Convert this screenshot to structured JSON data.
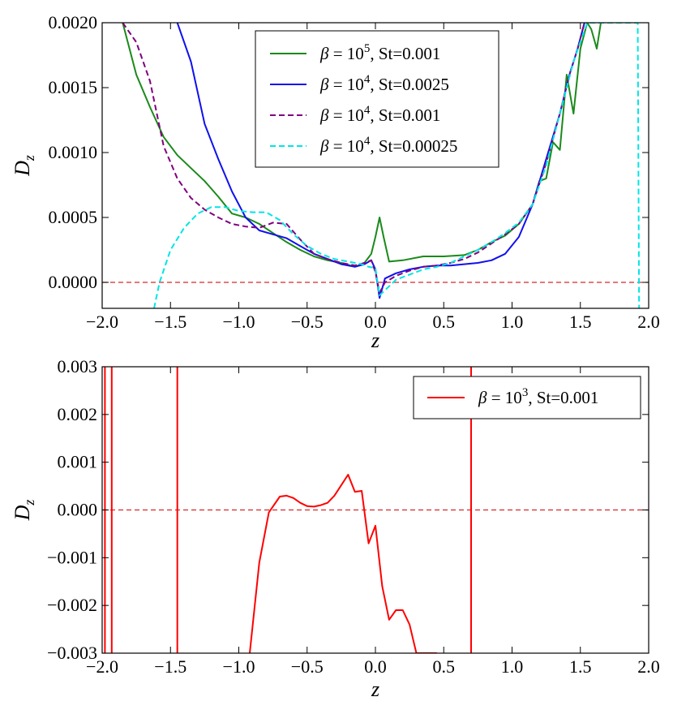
{
  "chart_data": [
    {
      "type": "line",
      "xlabel": "z",
      "ylabel": "D_z",
      "xlim": [
        -2.0,
        2.0
      ],
      "ylim": [
        -0.0002,
        0.002
      ],
      "xticks": [
        -2.0,
        -1.5,
        -1.0,
        -0.5,
        0.0,
        0.5,
        1.0,
        1.5,
        2.0
      ],
      "xtick_labels": [
        "−2.0",
        "−1.5",
        "−1.0",
        "−0.5",
        "0.0",
        "0.5",
        "1.0",
        "1.5",
        "2.0"
      ],
      "yticks": [
        0.0,
        0.0005,
        0.001,
        0.0015,
        0.002
      ],
      "ytick_labels": [
        "0.0000",
        "0.0005",
        "0.0010",
        "0.0015",
        "0.0020"
      ],
      "reference_line": {
        "y": 0.0,
        "color": "#d62728",
        "style": "dashed"
      },
      "legend_position": "top-center",
      "series": [
        {
          "name": "β = 10⁵, St=0.001",
          "color": "#1a8a1a",
          "style": "solid",
          "x": [
            -1.85,
            -1.75,
            -1.65,
            -1.55,
            -1.45,
            -1.35,
            -1.25,
            -1.15,
            -1.05,
            -0.95,
            -0.85,
            -0.75,
            -0.65,
            -0.55,
            -0.45,
            -0.35,
            -0.25,
            -0.15,
            -0.08,
            -0.03,
            0.0,
            0.03,
            0.06,
            0.1,
            0.2,
            0.35,
            0.5,
            0.65,
            0.75,
            0.85,
            0.95,
            1.05,
            1.15,
            1.2,
            1.25,
            1.3,
            1.35,
            1.4,
            1.45,
            1.5,
            1.55,
            1.58,
            1.62,
            1.65
          ],
          "y": [
            0.002,
            0.0016,
            0.00135,
            0.00112,
            0.00098,
            0.00088,
            0.00078,
            0.00066,
            0.00053,
            0.0005,
            0.00045,
            0.00038,
            0.00031,
            0.00025,
            0.0002,
            0.00017,
            0.00015,
            0.00012,
            0.00015,
            0.00022,
            0.00035,
            0.0005,
            0.00035,
            0.00016,
            0.00017,
            0.0002,
            0.0002,
            0.00021,
            0.00025,
            0.00031,
            0.00036,
            0.00045,
            0.0006,
            0.00078,
            0.0008,
            0.00108,
            0.00102,
            0.0016,
            0.0013,
            0.0018,
            0.002,
            0.00195,
            0.0018,
            0.002
          ]
        },
        {
          "name": "β = 10⁴, St=0.0025",
          "color": "#1010ee",
          "style": "solid",
          "x": [
            -1.45,
            -1.35,
            -1.25,
            -1.15,
            -1.05,
            -0.95,
            -0.85,
            -0.75,
            -0.65,
            -0.55,
            -0.45,
            -0.35,
            -0.25,
            -0.15,
            -0.08,
            -0.03,
            0.0,
            0.03,
            0.07,
            0.15,
            0.25,
            0.35,
            0.45,
            0.55,
            0.65,
            0.75,
            0.85,
            0.95,
            1.05,
            1.15,
            1.25,
            1.35,
            1.42,
            1.48,
            1.53
          ],
          "y": [
            0.002,
            0.0017,
            0.00122,
            0.00095,
            0.0007,
            0.0005,
            0.0004,
            0.00037,
            0.00034,
            0.00028,
            0.00022,
            0.00018,
            0.00014,
            0.00012,
            0.00014,
            0.00017,
            0.0001,
            -0.00012,
            3e-05,
            7e-05,
            0.0001,
            0.00012,
            0.00013,
            0.00013,
            0.00014,
            0.00015,
            0.00017,
            0.00022,
            0.00035,
            0.0006,
            0.00095,
            0.0013,
            0.0016,
            0.0018,
            0.002
          ]
        },
        {
          "name": "β = 10⁴, St=0.001",
          "color": "#800080",
          "style": "dashed",
          "x": [
            -1.85,
            -1.75,
            -1.65,
            -1.55,
            -1.45,
            -1.35,
            -1.25,
            -1.15,
            -1.05,
            -0.95,
            -0.85,
            -0.75,
            -0.65,
            -0.55,
            -0.45,
            -0.35,
            -0.25,
            -0.15,
            -0.08,
            -0.03,
            0.0,
            0.03,
            0.07,
            0.15,
            0.25,
            0.35,
            0.45,
            0.55,
            0.65,
            0.75,
            0.85,
            0.95,
            1.05,
            1.15,
            1.25,
            1.35,
            1.42,
            1.48,
            1.53
          ],
          "y": [
            0.002,
            0.00185,
            0.00155,
            0.00105,
            0.0008,
            0.00065,
            0.00056,
            0.0005,
            0.00045,
            0.00043,
            0.00042,
            0.00046,
            0.00045,
            0.00033,
            0.00022,
            0.00018,
            0.00015,
            0.00013,
            0.00015,
            0.00017,
            8e-05,
            -8e-05,
            0.0,
            5e-05,
            9e-05,
            0.00012,
            0.00013,
            0.00015,
            0.00018,
            0.00023,
            0.0003,
            0.00037,
            0.00045,
            0.0006,
            0.00092,
            0.0013,
            0.0016,
            0.0018,
            0.002
          ]
        },
        {
          "name": "β = 10⁴, St=0.00025",
          "color": "#00e5e5",
          "style": "dashed",
          "x": [
            -1.62,
            -1.58,
            -1.5,
            -1.4,
            -1.3,
            -1.2,
            -1.1,
            -1.0,
            -0.9,
            -0.8,
            -0.7,
            -0.6,
            -0.5,
            -0.4,
            -0.3,
            -0.2,
            -0.1,
            -0.05,
            0.0,
            0.03,
            0.07,
            0.15,
            0.25,
            0.35,
            0.45,
            0.55,
            0.65,
            0.75,
            0.85,
            0.95,
            1.05,
            1.15,
            1.25,
            1.35,
            1.45,
            1.55,
            1.65,
            1.92,
            1.93
          ],
          "y": [
            -0.0002,
            0.0,
            0.00025,
            0.00042,
            0.00053,
            0.00058,
            0.00058,
            0.00055,
            0.00054,
            0.00054,
            0.00048,
            0.00037,
            0.00028,
            0.00022,
            0.00018,
            0.00016,
            0.00014,
            0.00012,
            0.00011,
            -0.0001,
            -6e-05,
            2e-05,
            6e-05,
            0.0001,
            0.00012,
            0.00015,
            0.0002,
            0.00025,
            0.00031,
            0.00038,
            0.00046,
            0.0006,
            0.0009,
            0.0013,
            0.0017,
            0.002,
            0.002,
            0.002,
            -0.0002
          ]
        }
      ]
    },
    {
      "type": "line",
      "xlabel": "z",
      "ylabel": "D_z",
      "xlim": [
        -2.0,
        2.0
      ],
      "ylim": [
        -0.003,
        0.003
      ],
      "xticks": [
        -2.0,
        -1.5,
        -1.0,
        -0.5,
        0.0,
        0.5,
        1.0,
        1.5,
        2.0
      ],
      "xtick_labels": [
        "−2.0",
        "−1.5",
        "−1.0",
        "−0.5",
        "0.0",
        "0.5",
        "1.0",
        "1.5",
        "2.0"
      ],
      "yticks": [
        -0.003,
        -0.002,
        -0.001,
        0.0,
        0.001,
        0.002,
        0.003
      ],
      "ytick_labels": [
        "−0.003",
        "−0.002",
        "−0.001",
        "0.000",
        "0.001",
        "0.002",
        "0.003"
      ],
      "reference_line": {
        "y": 0.0,
        "color": "#d62728",
        "style": "dashed"
      },
      "legend_position": "top-right",
      "series": [
        {
          "name": "β = 10³, St=0.001",
          "color": "#ff0000",
          "style": "solid",
          "segments": [
            {
              "x": [
                -1.98,
                -1.98
              ],
              "y": [
                -0.003,
                0.003
              ]
            },
            {
              "x": [
                -1.93,
                -1.93
              ],
              "y": [
                -0.003,
                0.003
              ]
            },
            {
              "x": [
                -1.45,
                -1.45
              ],
              "y": [
                -0.003,
                0.003
              ]
            },
            {
              "x": [
                -0.92,
                -0.85,
                -0.78,
                -0.7,
                -0.65,
                -0.6,
                -0.55,
                -0.5,
                -0.45,
                -0.4,
                -0.35,
                -0.3,
                -0.25,
                -0.2,
                -0.15,
                -0.1,
                -0.05,
                0.0,
                0.05,
                0.1,
                0.15,
                0.2,
                0.25,
                0.3,
                0.35,
                0.4,
                0.45
              ],
              "y": [
                -0.003,
                -0.0011,
                -5e-05,
                0.00028,
                0.0003,
                0.00025,
                0.00015,
                8e-05,
                7e-05,
                0.0001,
                0.00015,
                0.0003,
                0.00052,
                0.00074,
                0.00038,
                0.0004,
                -0.0007,
                -0.00033,
                -0.0016,
                -0.0023,
                -0.0021,
                -0.0021,
                -0.0024,
                -0.003,
                -0.003,
                -0.003,
                -0.003
              ]
            },
            {
              "x": [
                0.7,
                0.7
              ],
              "y": [
                -0.003,
                0.003
              ]
            }
          ]
        }
      ]
    }
  ]
}
